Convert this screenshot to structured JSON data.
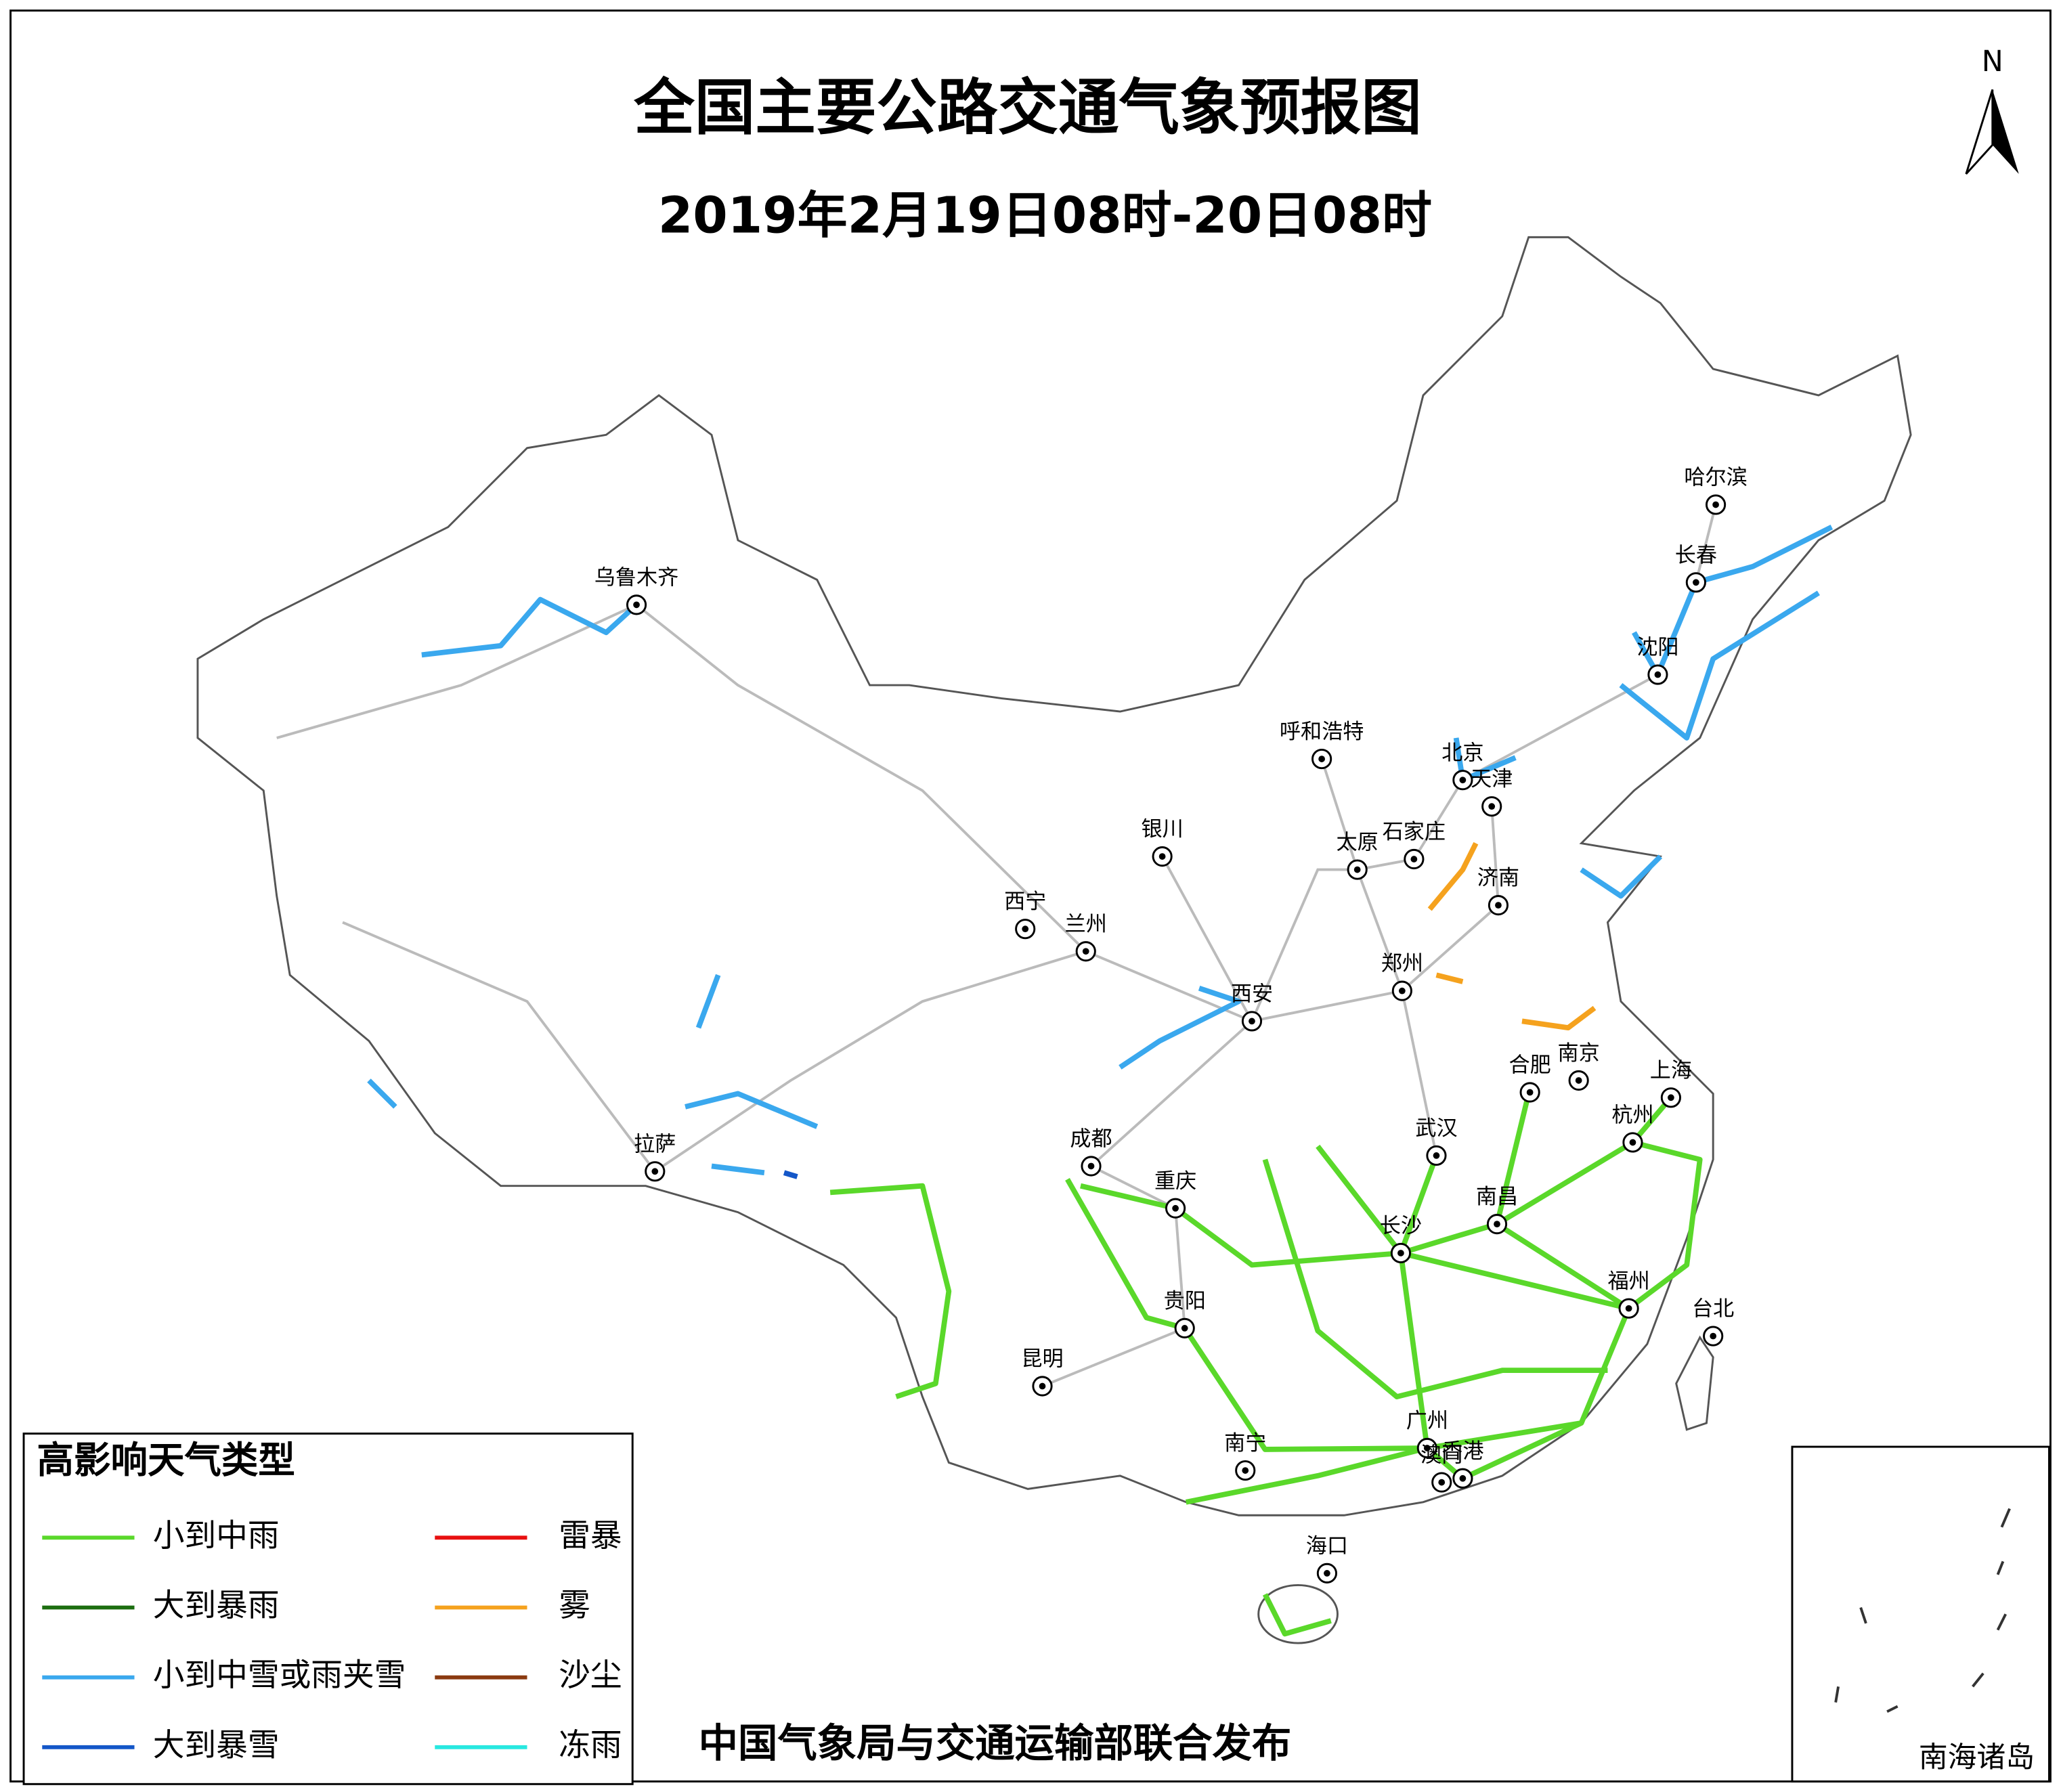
{
  "header": {
    "title": "全国主要公路交通气象预报图",
    "subtitle": "2019年2月19日08时-20日08时",
    "north": "N"
  },
  "legend": {
    "title": "高影响天气类型",
    "items": [
      {
        "label": "小到中雨",
        "color": "#5ad82a"
      },
      {
        "label": "大到暴雨",
        "color": "#1c6e10"
      },
      {
        "label": "小到中雪或雨夹雪",
        "color": "#3aa8ee"
      },
      {
        "label": "大到暴雪",
        "color": "#1457c8"
      },
      {
        "label": "雷暴",
        "color": "#e81010"
      },
      {
        "label": "雾",
        "color": "#f5a21e"
      },
      {
        "label": "沙尘",
        "color": "#8b3a10"
      },
      {
        "label": "冻雨",
        "color": "#28e8e0"
      }
    ]
  },
  "cities": [
    "乌鲁木齐",
    "哈尔滨",
    "长春",
    "沈阳",
    "呼和浩特",
    "北京",
    "天津",
    "石家庄",
    "太原",
    "银川",
    "济南",
    "西宁",
    "兰州",
    "郑州",
    "西安",
    "合肥",
    "南京",
    "上海",
    "拉萨",
    "成都",
    "武汉",
    "杭州",
    "重庆",
    "南昌",
    "长沙",
    "福州",
    "台北",
    "贵阳",
    "昆明",
    "广州",
    "南宁",
    "澳门",
    "香港",
    "海口"
  ],
  "footer": {
    "publisher": "中国气象局与交通运输部联合发布"
  },
  "inset": {
    "label": "南海诸岛"
  }
}
